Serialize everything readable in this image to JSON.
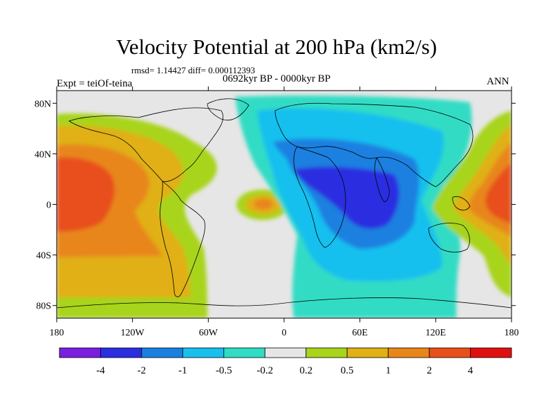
{
  "figure": {
    "title": "Velocity Potential at 200 hPa (km2/s)",
    "stats": "rmsd= 1.14427 diff= 0.000112393",
    "left_label": "Expt = teiOf-teina",
    "center_label": "0692kyr BP - 0000kyr BP",
    "right_label": "ANN"
  },
  "map": {
    "lat_ticks": [
      "80N",
      "40N",
      "0",
      "40S",
      "80S"
    ],
    "lon_ticks": [
      "180",
      "120W",
      "60W",
      "0",
      "60E",
      "120E",
      "180"
    ],
    "lon_range": [
      -180,
      180
    ],
    "lat_range": [
      -90,
      90
    ]
  },
  "colorbar": {
    "labels": [
      "-4",
      "-2",
      "-1",
      "-0.5",
      "-0.2",
      "0.2",
      "0.5",
      "1",
      "2",
      "4"
    ],
    "colors": [
      "#7a1fe0",
      "#2a2ee0",
      "#1a80e0",
      "#18c0ee",
      "#30dcc4",
      "#e6e6e6",
      "#a8d41a",
      "#e0b014",
      "#e8861a",
      "#e8501a",
      "#e01010"
    ]
  }
}
